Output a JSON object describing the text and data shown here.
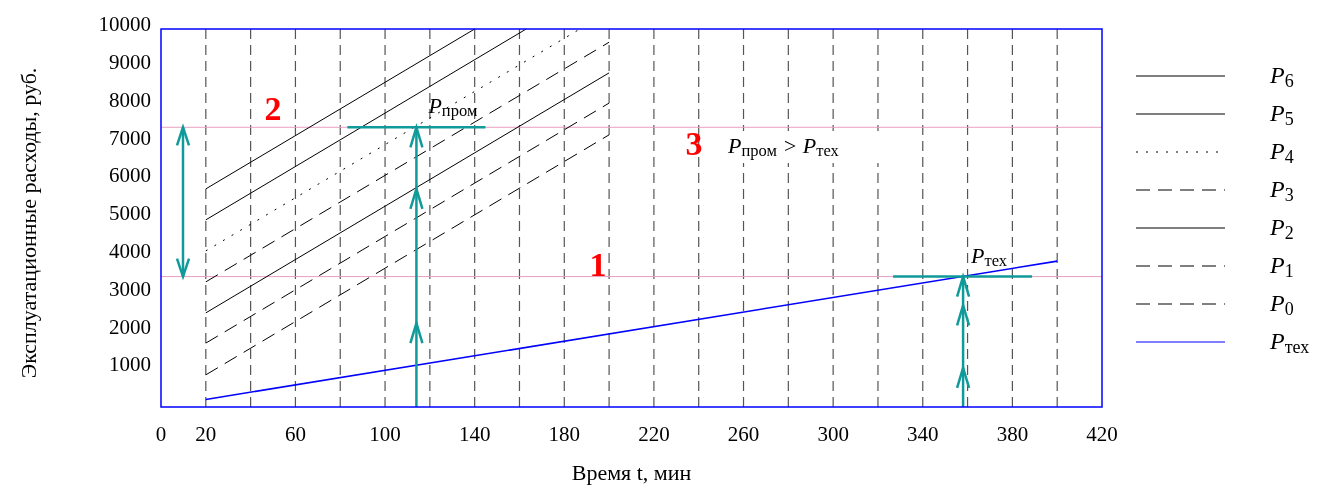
{
  "chart_data": {
    "type": "line",
    "xlabel": "Время t, мин",
    "ylabel": "Эксплуатационные расходы, руб.",
    "xlim": [
      0,
      420
    ],
    "ylim": [
      0,
      10000
    ],
    "xticks": [
      0,
      20,
      {
        "value": 40,
        "label": null
      },
      60,
      {
        "value": 80,
        "label": null
      },
      100,
      {
        "value": 120,
        "label": null
      },
      140,
      {
        "value": 160,
        "label": null
      },
      180,
      {
        "value": 200,
        "label": null
      },
      220,
      {
        "value": 240,
        "label": null
      },
      260,
      {
        "value": 280,
        "label": null
      },
      300,
      {
        "value": 320,
        "label": null
      },
      340,
      {
        "value": 360,
        "label": null
      },
      380,
      {
        "value": 400,
        "label": null
      },
      420
    ],
    "yticks": [
      1000,
      2000,
      3000,
      4000,
      5000,
      6000,
      7000,
      8000,
      9000,
      10000
    ],
    "grid": "x",
    "legend": "right",
    "series": [
      {
        "name": "P$_{6}$",
        "color": "#000000",
        "line_style": "solid",
        "x": [
          20,
          140
        ],
        "values": [
          5770,
          10000
        ]
      },
      {
        "name": "P$_{5}$",
        "color": "#000000",
        "line_style": "solid",
        "x": [
          20,
          163
        ],
        "values": [
          4950,
          10000
        ]
      },
      {
        "name": "P$_{4}$",
        "color": "#000000",
        "line_style": "dotted",
        "x": [
          20,
          187
        ],
        "values": [
          4130,
          10000
        ]
      },
      {
        "name": "P$_{3}$",
        "color": "#000000",
        "line_style": "dashed",
        "x": [
          20,
          200
        ],
        "values": [
          3310,
          9650
        ]
      },
      {
        "name": "P$_{2}$",
        "color": "#000000",
        "line_style": "solid",
        "x": [
          20,
          200
        ],
        "values": [
          2490,
          8840
        ]
      },
      {
        "name": "P$_{1}$",
        "color": "#000000",
        "line_style": "dashed",
        "x": [
          20,
          200
        ],
        "values": [
          1690,
          8040
        ]
      },
      {
        "name": "P$_{0}$",
        "color": "#000000",
        "line_style": "dashed",
        "x": [
          20,
          200
        ],
        "values": [
          850,
          7200
        ]
      },
      {
        "name": "P$_{тех}$",
        "color": "#0000ff",
        "line_style": "solid",
        "x": [
          20,
          400
        ],
        "values": [
          200,
          3860
        ]
      }
    ],
    "ref_lines": [
      {
        "axis": "y",
        "value": 7400,
        "color": "#e8a0c0"
      },
      {
        "axis": "y",
        "value": 3450,
        "color": "#e8a0c0"
      }
    ],
    "annotations": [
      {
        "text": "P$_{пром}$",
        "x": 114,
        "y": 7400
      },
      {
        "text": "P$_{тех}$",
        "x": 358,
        "y": 3450
      },
      "1",
      "2",
      "3",
      "P$_{пром}$ > P$_{тех}$"
    ]
  }
}
